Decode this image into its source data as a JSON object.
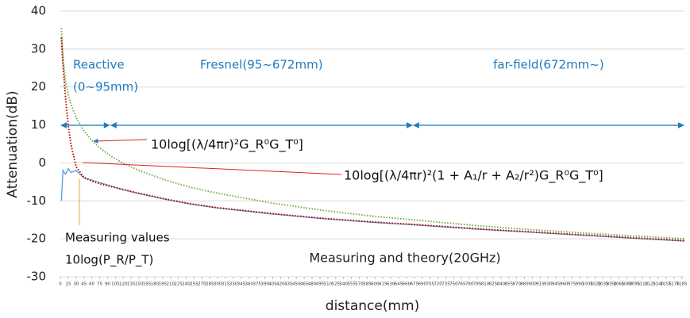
{
  "chart_data": {
    "type": "line",
    "title": "Measuring and theory(20GHz)",
    "x_label": "distance(mm)",
    "y_label": "Attenuation(dB)",
    "x": [
      2,
      5,
      10,
      15,
      20,
      30,
      45,
      60,
      75,
      95,
      120,
      150,
      200,
      250,
      300,
      400,
      500,
      600,
      672,
      800,
      900,
      1000,
      1100,
      1190
    ],
    "series": [
      {
        "name": "Measuring values",
        "color": "#5b9bd5",
        "values": [
          -10,
          -2,
          -3,
          -1.5,
          -2.5,
          -2,
          -4,
          -4.5,
          -5.2,
          -6,
          -7.1,
          -8.1,
          -9.6,
          -10.9,
          -11.9,
          -13.4,
          -14.7,
          -15.7,
          -16.3,
          -17.5,
          -18.3,
          -19.1,
          -19.9,
          -20.6
        ]
      },
      {
        "name": "10log[(λ/4πr)²G_R⁰G_T⁰]",
        "color": "#70ad47",
        "values": [
          35.5,
          27.5,
          21.5,
          18,
          15.5,
          12,
          8.4,
          5.9,
          4,
          1.9,
          -0.1,
          -2,
          -4.5,
          -6.5,
          -8,
          -10.5,
          -12.5,
          -14.1,
          -15,
          -16.6,
          -17.6,
          -18.5,
          -19.3,
          -20
        ]
      },
      {
        "name": "10log[(λ/4πr)²(1 + A₁/r + A₂/r²)G_R⁰G_T⁰]",
        "color": "#c00000",
        "values": [
          33,
          26,
          17,
          10,
          5,
          -1,
          -3.8,
          -4.8,
          -5.5,
          -6.2,
          -7,
          -8,
          -9.5,
          -10.8,
          -11.8,
          -13.3,
          -14.6,
          -15.6,
          -16.2,
          -17.4,
          -18.2,
          -19,
          -19.8,
          -20.5
        ]
      }
    ],
    "measured_note": "10log(P_R/P_T)",
    "regions": [
      {
        "label": "Reactive",
        "sublabel": "(0~95mm)",
        "from": 0,
        "to": 95
      },
      {
        "label": "Fresnel(95~672mm)",
        "from": 95,
        "to": 672
      },
      {
        "label": "far-field(672mm~)",
        "from": 672,
        "to": 1190
      }
    ],
    "xlim": [
      0,
      1190
    ],
    "ylim": [
      -30,
      40
    ],
    "yticks": [
      -30,
      -20,
      -10,
      0,
      10,
      20,
      30,
      40
    ],
    "xticks": [
      0,
      15,
      30,
      45,
      60,
      75,
      90,
      105,
      120,
      135,
      150,
      165,
      180,
      195,
      210,
      225,
      240,
      255,
      270,
      285,
      300,
      315,
      330,
      345,
      360,
      375,
      390,
      405,
      420,
      435,
      450,
      465,
      480,
      495,
      510,
      525,
      540,
      555,
      570,
      585,
      600,
      615,
      630,
      645,
      660,
      675,
      690,
      705,
      720,
      735,
      750,
      765,
      780,
      795,
      810,
      825,
      840,
      855,
      870,
      885,
      900,
      915,
      930,
      945,
      960,
      975,
      990,
      1005,
      1020,
      1035,
      1050,
      1065,
      1080,
      1095,
      1110,
      1125,
      1140,
      1155,
      1170,
      1185
    ],
    "grid": true
  }
}
